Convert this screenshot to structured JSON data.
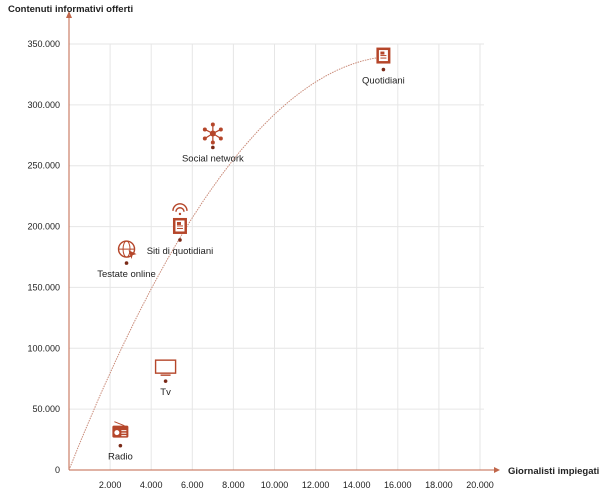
{
  "chart_data": {
    "type": "scatter",
    "title": "",
    "xlabel": "Giornalisti impiegati",
    "ylabel": "Contenuti informativi offerti",
    "xlim": [
      0,
      20000
    ],
    "ylim": [
      0,
      350000
    ],
    "x_ticks": [
      "2.000",
      "4.000",
      "6.000",
      "8.000",
      "10.000",
      "12.000",
      "14.000",
      "16.000",
      "18.000",
      "20.000"
    ],
    "y_ticks": [
      "0",
      "50.000",
      "100.000",
      "150.000",
      "200.000",
      "250.000",
      "300.000",
      "350.000"
    ],
    "grid": true,
    "trendline": "concave curve (dotted)",
    "accent_color": "#b5462a",
    "points": [
      {
        "label": "Radio",
        "x": 2500,
        "y": 20000,
        "icon": "radio-icon"
      },
      {
        "label": "Tv",
        "x": 4700,
        "y": 73000,
        "icon": "tv-icon"
      },
      {
        "label": "Testate online",
        "x": 2800,
        "y": 170000,
        "icon": "globe-cursor-icon"
      },
      {
        "label": "Siti di quotidiani",
        "x": 5400,
        "y": 189000,
        "icon": "newspaper-wifi-icon"
      },
      {
        "label": "Social network",
        "x": 7000,
        "y": 265000,
        "icon": "network-icon"
      },
      {
        "label": "Quotidiani",
        "x": 15300,
        "y": 329000,
        "icon": "newspaper-icon"
      }
    ]
  }
}
